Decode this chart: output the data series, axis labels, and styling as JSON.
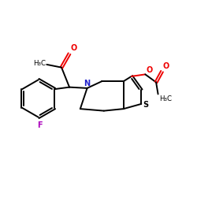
{
  "colors": {
    "bond": "#000000",
    "N": "#2020cc",
    "S": "#000000",
    "O": "#ee0000",
    "F": "#aa00bb",
    "C": "#000000",
    "background": "#ffffff"
  },
  "lw": 1.4,
  "fs": 7.0,
  "fs_small": 6.2
}
